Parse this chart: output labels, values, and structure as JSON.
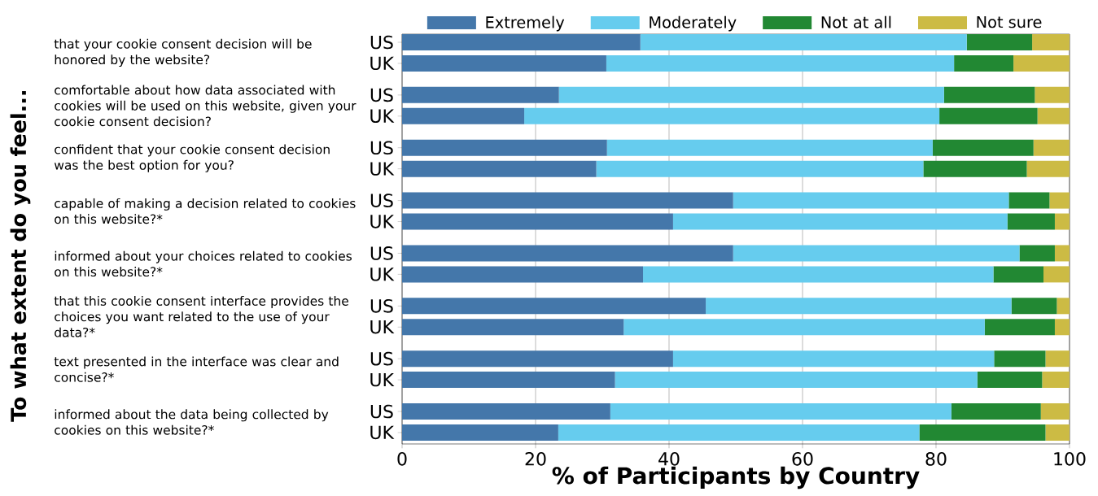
{
  "chart_data": {
    "type": "bar",
    "orientation": "horizontal",
    "stacked": true,
    "categories": [
      "US",
      "UK",
      "US",
      "UK",
      "US",
      "UK",
      "US",
      "UK",
      "US",
      "UK",
      "US",
      "UK",
      "US",
      "UK",
      "US",
      "UK"
    ],
    "series": [
      {
        "name": "Extremely",
        "color": "#4477aa",
        "values": [
          35.7,
          30.6,
          23.5,
          18.3,
          30.7,
          29.1,
          49.6,
          40.6,
          49.6,
          36.1,
          45.5,
          33.2,
          40.6,
          31.9,
          31.2,
          23.4
        ]
      },
      {
        "name": "Moderately",
        "color": "#66ccee",
        "values": [
          48.9,
          52.1,
          57.7,
          62.2,
          48.8,
          49.0,
          41.3,
          50.1,
          42.9,
          52.5,
          45.8,
          54.1,
          48.1,
          54.3,
          51.1,
          54.1
        ]
      },
      {
        "name": "Not at all",
        "color": "#228833",
        "values": [
          9.8,
          8.9,
          13.6,
          14.7,
          15.1,
          15.5,
          6.1,
          7.1,
          5.3,
          7.5,
          6.8,
          10.5,
          7.7,
          9.7,
          13.4,
          18.9
        ]
      },
      {
        "name": "Not sure",
        "color": "#ccbb44",
        "values": [
          5.6,
          8.4,
          5.2,
          4.8,
          5.4,
          6.4,
          3.0,
          2.2,
          2.2,
          3.9,
          1.9,
          2.2,
          3.6,
          4.1,
          4.3,
          3.6
        ]
      }
    ],
    "xlim": [
      0,
      100
    ],
    "xticks": [
      0,
      20,
      40,
      60,
      80,
      100
    ],
    "xlabel": "% of Participants by Country",
    "grid": "x",
    "legend": "top",
    "annotations": [
      "To what extent do you feel...",
      "that your cookie consent decision will be honored by the website?",
      "comfortable about how data associated with cookies will be used on this website, given your cookie consent decision?",
      "confident that your cookie consent decision was the best option for you?",
      "capable of making a decision related to cookies on this website?*",
      "informed about your choices related to cookies on this website?*",
      "that this cookie consent interface provides the choices you want related to the use of your data?*",
      "text presented in the interface was clear and concise?*",
      "informed about the data being collected by cookies on this website?*"
    ]
  }
}
